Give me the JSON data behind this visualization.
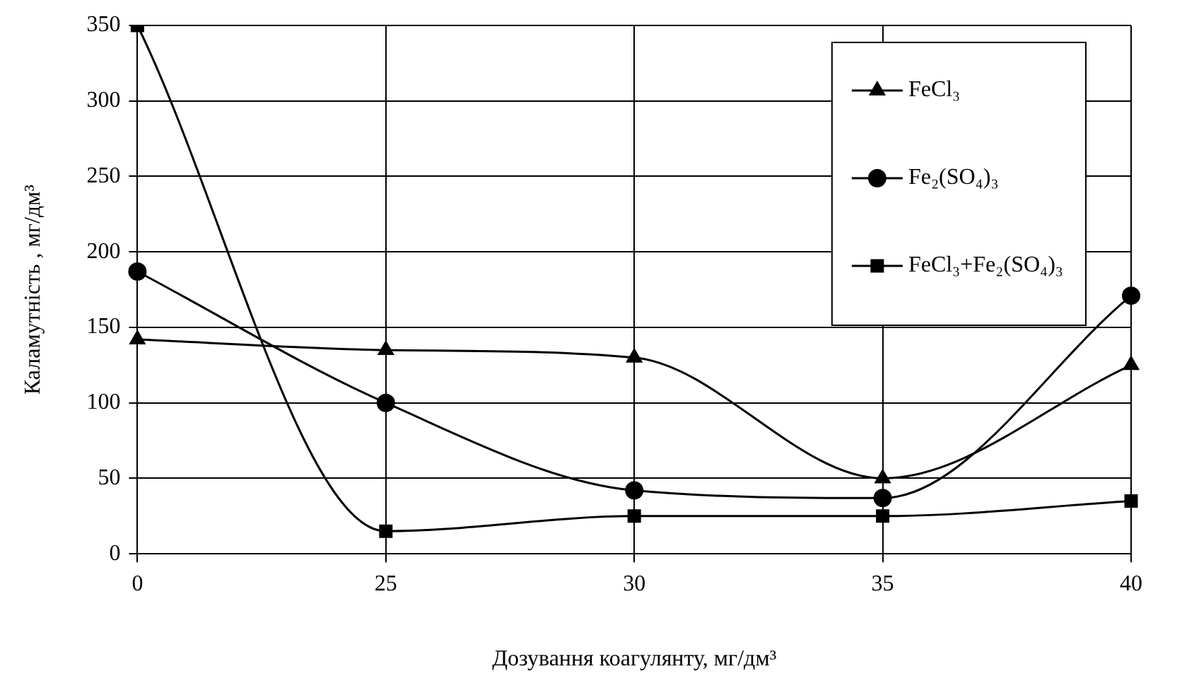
{
  "chart_data": {
    "type": "line",
    "xlabel": "Дозування коагулянту, мг/дм³",
    "ylabel": "Каламутність , мг/дм³",
    "categories": [
      "0",
      "25",
      "30",
      "35",
      "40"
    ],
    "series": [
      {
        "name": "FeCl₃",
        "color": "#000000",
        "marker": "triangle",
        "values": [
          142,
          135,
          130,
          50,
          125
        ]
      },
      {
        "name": "Fe₂(SO₄)₃",
        "color": "#000000",
        "marker": "circle",
        "values": [
          187,
          100,
          42,
          37,
          171
        ]
      },
      {
        "name": "FeCl₃+Fe₂(SO₄)₃",
        "color": "#000000",
        "marker": "square",
        "values": [
          350,
          15,
          25,
          25,
          35
        ]
      }
    ],
    "ylim": [
      0,
      350
    ],
    "yticks": [
      0,
      50,
      100,
      150,
      200,
      250,
      300,
      350
    ],
    "grid": true,
    "legend": "top right"
  }
}
